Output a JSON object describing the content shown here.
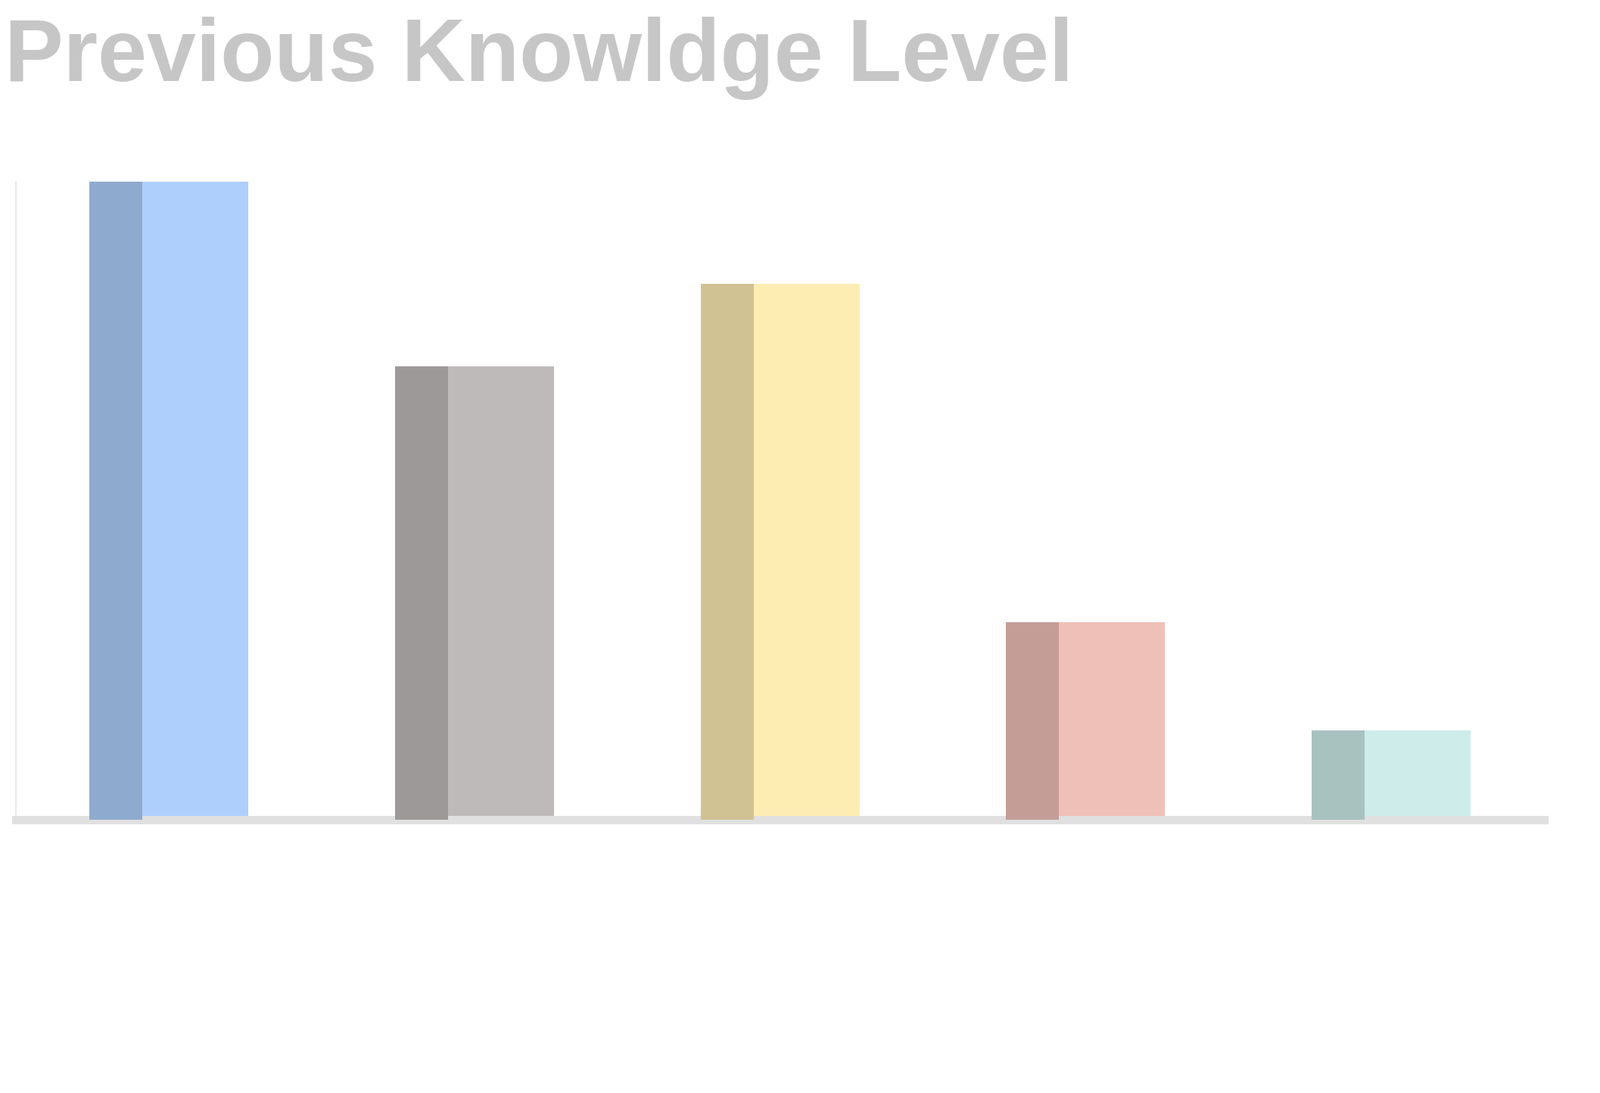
{
  "chart_data": {
    "type": "bar",
    "title": "Previous Knowldge Level",
    "categories": [
      null,
      null,
      null,
      null,
      null
    ],
    "values": [
      100,
      71,
      84,
      31,
      14
    ],
    "colors": [
      "#aecffc",
      "#bfbaba",
      "#feedb3",
      "#efc0b8",
      "#cdecea"
    ],
    "ylim": [
      0,
      100
    ],
    "yticks": [],
    "tick_labels": false,
    "grid": false
  }
}
